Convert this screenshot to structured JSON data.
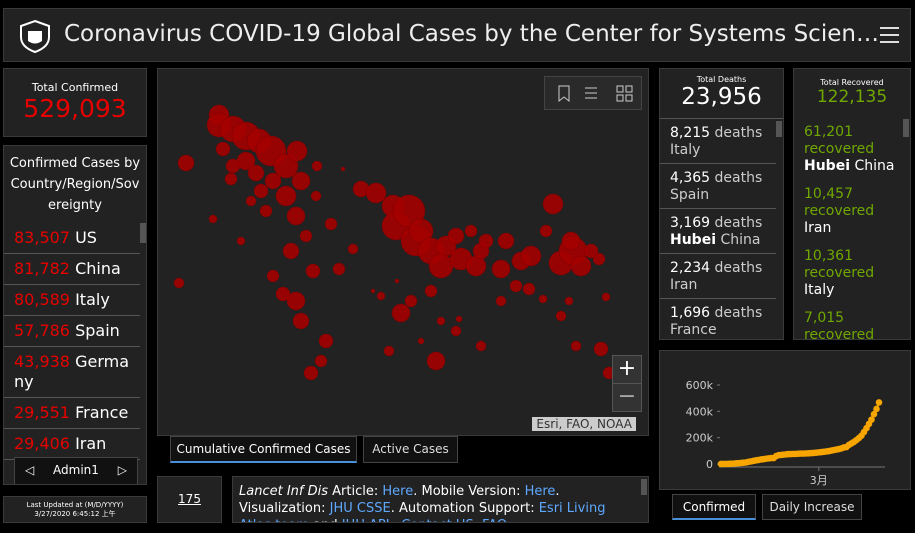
{
  "header": {
    "title": "Coronavirus COVID-19 Global Cases by the Center for Systems Scien…"
  },
  "total_confirmed": {
    "label": "Total Confirmed",
    "value": "529,093"
  },
  "country_list": {
    "heading": "Confirmed Cases by Country/Region/Sovereignty",
    "items": [
      {
        "value": "83,507",
        "name": "US"
      },
      {
        "value": "81,782",
        "name": "China"
      },
      {
        "value": "80,589",
        "name": "Italy"
      },
      {
        "value": "57,786",
        "name": "Spain"
      },
      {
        "value": "43,938",
        "name": "Germany"
      },
      {
        "value": "29,551",
        "name": "France"
      },
      {
        "value": "29,406",
        "name": "Iran"
      }
    ],
    "nav": "Admin1"
  },
  "last_updated": {
    "label": "Last Updated at (M/D/YYYY)",
    "value": "3/27/2020 6:45:12 上午"
  },
  "map": {
    "tabs": [
      "Cumulative Confirmed Cases",
      "Active Cases"
    ],
    "attribution": "Esri, FAO, NOAA",
    "zoom_in": "+",
    "zoom_out": "−"
  },
  "count_badge": "175",
  "info": [
    {
      "text": "Lancet Inf Dis",
      "italic": true
    },
    {
      "text": " Article: "
    },
    {
      "text": "Here",
      "link": true
    },
    {
      "text": ". Mobile Version: "
    },
    {
      "text": "Here",
      "link": true
    },
    {
      "text": ". Visualization: "
    },
    {
      "text": "JHU CSSE",
      "link": true
    },
    {
      "text": ". Automation Support: "
    },
    {
      "text": "Esri Living Atlas team",
      "link": true
    },
    {
      "text": " and "
    },
    {
      "text": "JHU APL",
      "link": true
    },
    {
      "text": ". "
    },
    {
      "text": "Contact US",
      "link": true
    },
    {
      "text": ". "
    },
    {
      "text": "FAQ",
      "link": true
    },
    {
      "text": "."
    }
  ],
  "deaths": {
    "label": "Total Deaths",
    "value": "23,956",
    "items": [
      {
        "value": "8,215",
        "unit": "deaths",
        "place": "Italy"
      },
      {
        "value": "4,365",
        "unit": "deaths",
        "place": "Spain"
      },
      {
        "value": "3,169",
        "unit": "deaths",
        "region": "Hubei",
        "place": "China"
      },
      {
        "value": "2,234",
        "unit": "deaths",
        "place": "Iran"
      },
      {
        "value": "1,696",
        "unit": "deaths",
        "place": "France"
      }
    ]
  },
  "recovered": {
    "label": "Total Recovered",
    "value": "122,135",
    "items": [
      {
        "value": "61,201",
        "unit": "recovered",
        "region": "Hubei",
        "place": "China"
      },
      {
        "value": "10,457",
        "unit": "recovered",
        "place": "Iran"
      },
      {
        "value": "10,361",
        "unit": "recovered",
        "place": "Italy"
      },
      {
        "value": "7,015",
        "unit": "recovered"
      }
    ]
  },
  "chart_tabs": [
    "Confirmed",
    "Daily Increase"
  ],
  "chart_data": {
    "type": "line",
    "color": "#f7a500",
    "categories": [
      null,
      null,
      null,
      null,
      null,
      null,
      null,
      null,
      null,
      null,
      null,
      null,
      null,
      null,
      null,
      null,
      null,
      null,
      null,
      null,
      null,
      null,
      null,
      null,
      null,
      null,
      null,
      null,
      null,
      null,
      null,
      null,
      null,
      null,
      null,
      null,
      null,
      null,
      null,
      "3月",
      null,
      null,
      null,
      null,
      null,
      null,
      null,
      null,
      null,
      null,
      null,
      null,
      null,
      null,
      null,
      null,
      null,
      null,
      null,
      null,
      null,
      null,
      null,
      null
    ],
    "values": [
      555,
      654,
      941,
      1434,
      2118,
      2927,
      5578,
      6166,
      8234,
      9927,
      12038,
      16787,
      19881,
      23892,
      27635,
      30817,
      34391,
      37120,
      40150,
      42762,
      44802,
      45221,
      60368,
      66885,
      69030,
      71224,
      73258,
      75136,
      75639,
      76197,
      76819,
      78572,
      78958,
      79561,
      80406,
      81388,
      82746,
      84112,
      86011,
      88369,
      90306,
      92840,
      95120,
      97886,
      101801,
      105847,
      109821,
      113590,
      118620,
      125875,
      128352,
      145205,
      156101,
      167454,
      181574,
      197102,
      214821,
      242570,
      272208,
      304507,
      336953,
      378235,
      418045,
      467653
    ],
    "ylim": [
      0,
      600000
    ],
    "yticks": [
      0,
      {
        "value": 200000,
        "label": "200k"
      },
      {
        "value": 400000,
        "label": "400k"
      },
      {
        "value": 600000,
        "label": "600k"
      }
    ]
  }
}
